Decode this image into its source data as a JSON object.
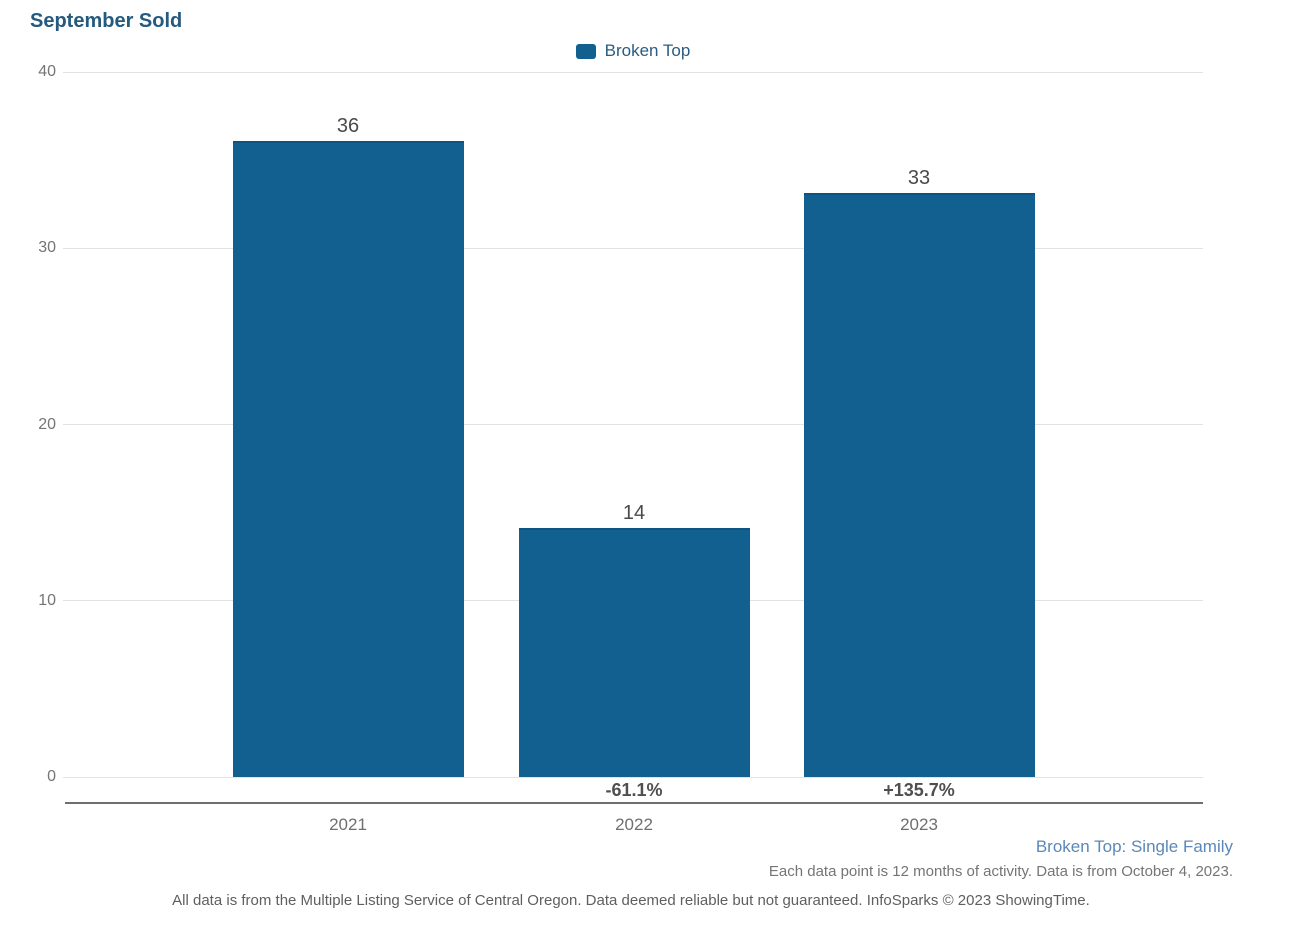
{
  "title": "September Sold",
  "legend": {
    "label": "Broken Top"
  },
  "colors": {
    "title": "#255a7e",
    "legend_text": "#2b5c80",
    "bar": "#11608f",
    "bar_border": "#0d5480",
    "gridline": "#e2e2e2",
    "axis_line": "#6e6e6e",
    "ytick": "#757575",
    "xtick": "#6f6f6f",
    "value_label": "#4a4a4a",
    "pct_label": "#4f4f4f",
    "note_blue": "#5b87ba",
    "note_gray": "#757575",
    "disclaimer": "#5f5f5f"
  },
  "chart_data": {
    "type": "bar",
    "title": "September Sold",
    "categories": [
      "2021",
      "2022",
      "2023"
    ],
    "series": [
      {
        "name": "Broken Top",
        "values": [
          36,
          14,
          33
        ]
      }
    ],
    "pct_change": [
      "",
      "-61.1%",
      "+135.7%"
    ],
    "xlabel": "",
    "ylabel": "",
    "ylim": [
      0,
      40
    ],
    "yticks": [
      0,
      10,
      20,
      30,
      40
    ],
    "grid": true,
    "legend_position": "top-center"
  },
  "footnotes": {
    "series_note": "Broken Top: Single Family",
    "data_note": "Each data point is 12 months of activity. Data is from October 4, 2023.",
    "disclaimer": "All data is from the Multiple Listing Service of Central Oregon. Data deemed reliable but not guaranteed. InfoSparks © 2023 ShowingTime."
  }
}
